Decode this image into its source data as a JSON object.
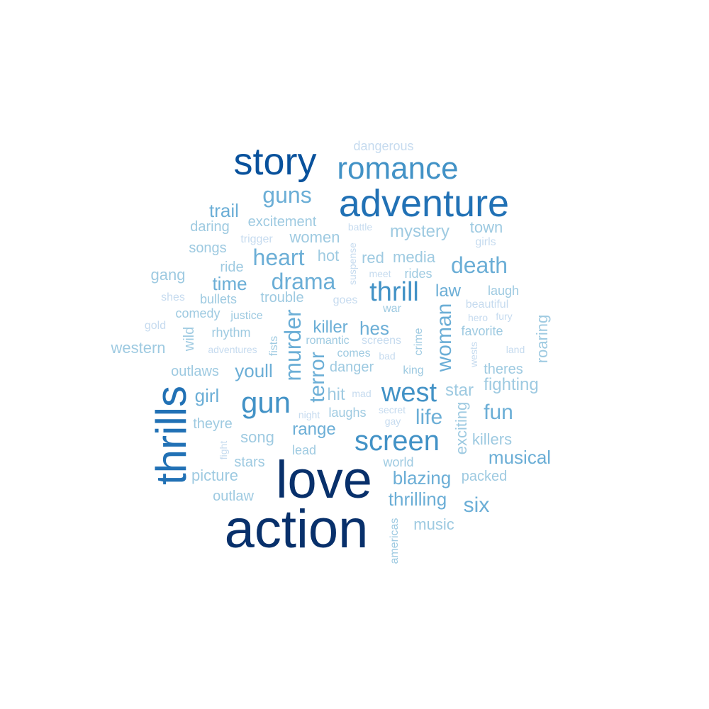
{
  "palette": {
    "darkest": "#08306b",
    "dark": "#08519c",
    "mid_dark": "#2171b5",
    "mid": "#4292c6",
    "light": "#6baed6",
    "lighter": "#9ecae1",
    "lightest": "#c6dbef"
  },
  "words": [
    {
      "text": "action",
      "tone": "darkest"
    },
    {
      "text": "love",
      "tone": "darkest"
    },
    {
      "text": "thrills",
      "tone": "mid_dark"
    },
    {
      "text": "story",
      "tone": "dark"
    },
    {
      "text": "adventure",
      "tone": "mid_dark"
    },
    {
      "text": "romance",
      "tone": "mid"
    },
    {
      "text": "screen",
      "tone": "mid"
    },
    {
      "text": "west",
      "tone": "mid"
    },
    {
      "text": "gun",
      "tone": "mid"
    },
    {
      "text": "thrill",
      "tone": "mid"
    },
    {
      "text": "drama",
      "tone": "light"
    },
    {
      "text": "heart",
      "tone": "light"
    },
    {
      "text": "guns",
      "tone": "light"
    },
    {
      "text": "death",
      "tone": "light"
    },
    {
      "text": "murder",
      "tone": "light"
    },
    {
      "text": "woman",
      "tone": "light"
    },
    {
      "text": "terror",
      "tone": "light"
    },
    {
      "text": "six",
      "tone": "light"
    },
    {
      "text": "fun",
      "tone": "light"
    },
    {
      "text": "life",
      "tone": "light"
    },
    {
      "text": "musical",
      "tone": "light"
    },
    {
      "text": "blazing",
      "tone": "light"
    },
    {
      "text": "hes",
      "tone": "light"
    },
    {
      "text": "killer",
      "tone": "light"
    },
    {
      "text": "range",
      "tone": "light"
    },
    {
      "text": "time",
      "tone": "light"
    },
    {
      "text": "trail",
      "tone": "light"
    },
    {
      "text": "mystery",
      "tone": "lighter"
    },
    {
      "text": "girl",
      "tone": "light"
    },
    {
      "text": "youll",
      "tone": "light"
    },
    {
      "text": "fighting",
      "tone": "lighter"
    },
    {
      "text": "star",
      "tone": "lighter"
    },
    {
      "text": "thrilling",
      "tone": "light"
    },
    {
      "text": "law",
      "tone": "light"
    },
    {
      "text": "media",
      "tone": "lighter"
    },
    {
      "text": "red",
      "tone": "lighter"
    },
    {
      "text": "hit",
      "tone": "lighter"
    },
    {
      "text": "women",
      "tone": "lighter"
    },
    {
      "text": "hot",
      "tone": "lighter"
    },
    {
      "text": "exciting",
      "tone": "lighter"
    },
    {
      "text": "roaring",
      "tone": "lighter"
    },
    {
      "text": "town",
      "tone": "lighter"
    },
    {
      "text": "excitement",
      "tone": "lighter"
    },
    {
      "text": "daring",
      "tone": "lighter"
    },
    {
      "text": "songs",
      "tone": "lighter"
    },
    {
      "text": "gang",
      "tone": "lighter"
    },
    {
      "text": "western",
      "tone": "lighter"
    },
    {
      "text": "outlaws",
      "tone": "lighter"
    },
    {
      "text": "picture",
      "tone": "lighter"
    },
    {
      "text": "song",
      "tone": "lighter"
    },
    {
      "text": "theyre",
      "tone": "lighter"
    },
    {
      "text": "stars",
      "tone": "lighter"
    },
    {
      "text": "outlaw",
      "tone": "lighter"
    },
    {
      "text": "music",
      "tone": "lighter"
    },
    {
      "text": "killers",
      "tone": "lighter"
    },
    {
      "text": "packed",
      "tone": "lighter"
    },
    {
      "text": "world",
      "tone": "lighter"
    },
    {
      "text": "lead",
      "tone": "lighter"
    },
    {
      "text": "laughs",
      "tone": "lighter"
    },
    {
      "text": "danger",
      "tone": "lighter"
    },
    {
      "text": "comes",
      "tone": "lighter"
    },
    {
      "text": "theres",
      "tone": "lighter"
    },
    {
      "text": "favorite",
      "tone": "lighter"
    },
    {
      "text": "laugh",
      "tone": "lighter"
    },
    {
      "text": "trouble",
      "tone": "lighter"
    },
    {
      "text": "bullets",
      "tone": "lighter"
    },
    {
      "text": "comedy",
      "tone": "lighter"
    },
    {
      "text": "rhythm",
      "tone": "lighter"
    },
    {
      "text": "ride",
      "tone": "lighter"
    },
    {
      "text": "rides",
      "tone": "lighter"
    },
    {
      "text": "wild",
      "tone": "lighter"
    },
    {
      "text": "justice",
      "tone": "lighter"
    },
    {
      "text": "romantic",
      "tone": "lighter"
    },
    {
      "text": "screens",
      "tone": "lightest"
    },
    {
      "text": "war",
      "tone": "lighter"
    },
    {
      "text": "crime",
      "tone": "lighter"
    },
    {
      "text": "king",
      "tone": "lighter"
    },
    {
      "text": "fists",
      "tone": "lighter"
    },
    {
      "text": "americas",
      "tone": "lighter"
    },
    {
      "text": "dangerous",
      "tone": "lightest"
    },
    {
      "text": "battle",
      "tone": "lightest"
    },
    {
      "text": "trigger",
      "tone": "lightest"
    },
    {
      "text": "girls",
      "tone": "lightest"
    },
    {
      "text": "suspense",
      "tone": "lightest"
    },
    {
      "text": "meet",
      "tone": "lightest"
    },
    {
      "text": "shes",
      "tone": "lightest"
    },
    {
      "text": "goes",
      "tone": "lightest"
    },
    {
      "text": "beautiful",
      "tone": "lightest"
    },
    {
      "text": "hero",
      "tone": "lightest"
    },
    {
      "text": "fury",
      "tone": "lightest"
    },
    {
      "text": "gold",
      "tone": "lightest"
    },
    {
      "text": "adventures",
      "tone": "lightest"
    },
    {
      "text": "bad",
      "tone": "lightest"
    },
    {
      "text": "land",
      "tone": "lightest"
    },
    {
      "text": "wests",
      "tone": "lightest"
    },
    {
      "text": "mad",
      "tone": "lightest"
    },
    {
      "text": "night",
      "tone": "lightest"
    },
    {
      "text": "secret",
      "tone": "lightest"
    },
    {
      "text": "gay",
      "tone": "lightest"
    },
    {
      "text": "fight",
      "tone": "lightest"
    }
  ]
}
